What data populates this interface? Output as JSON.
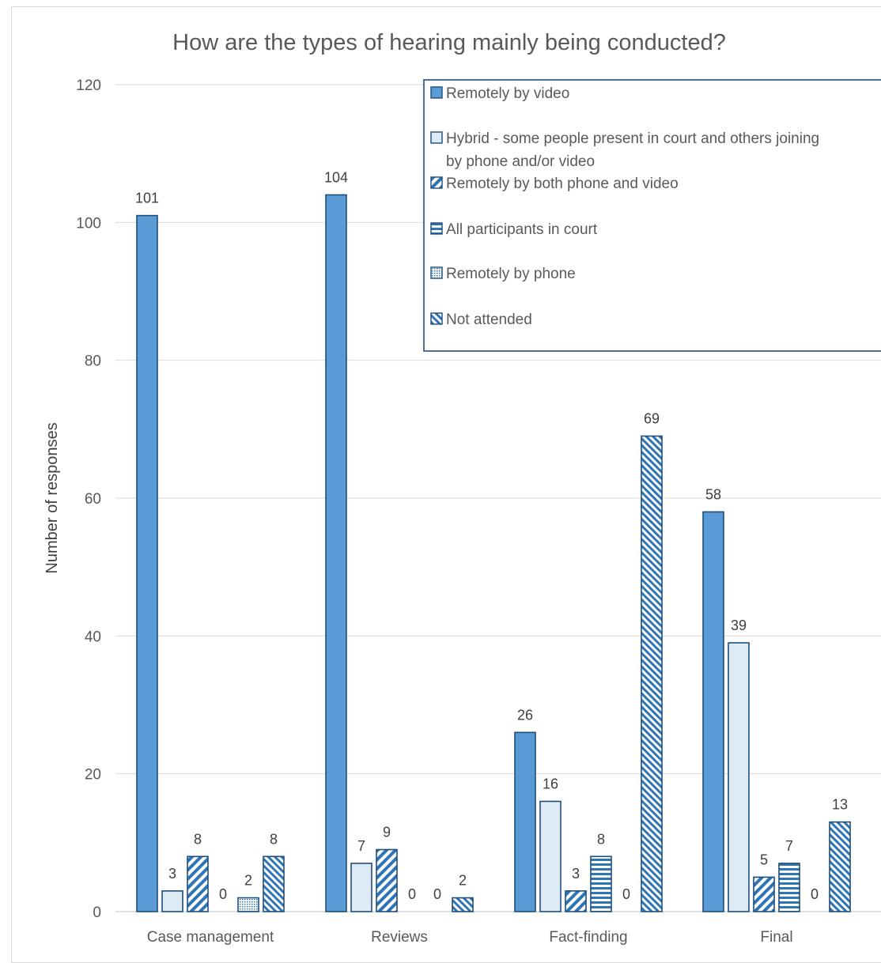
{
  "chart_data": {
    "type": "bar",
    "title": "How are the types of hearing mainly being conducted?",
    "ylabel": "Number of responses",
    "xlabel": "",
    "ylim": [
      0,
      120
    ],
    "yticks": [
      0,
      20,
      40,
      60,
      80,
      100,
      120
    ],
    "grid": true,
    "legend_position": "top-right",
    "categories": [
      "Case management",
      "Reviews",
      "Fact-finding",
      "Final"
    ],
    "series": [
      {
        "name": "Remotely by video",
        "values": [
          101,
          104,
          26,
          58
        ],
        "pattern": "solid",
        "color": "#5b9bd5"
      },
      {
        "name": "Hybrid - some people present in court and others joining by phone and/or video",
        "values": [
          3,
          7,
          16,
          39
        ],
        "pattern": "light",
        "color": "#deebf7"
      },
      {
        "name": "Remotely by both phone and video",
        "values": [
          8,
          9,
          3,
          5
        ],
        "pattern": "wide-downward-diagonal",
        "color": "#2e75b6"
      },
      {
        "name": "All participants in court",
        "values": [
          0,
          0,
          8,
          7
        ],
        "pattern": "horizontal",
        "color": "#2e75b6"
      },
      {
        "name": "Remotely by phone",
        "values": [
          2,
          0,
          0,
          0
        ],
        "pattern": "dotted",
        "color": "#2e75b6"
      },
      {
        "name": "Not attended",
        "values": [
          8,
          2,
          69,
          13
        ],
        "pattern": "upward-diagonal",
        "color": "#2e75b6"
      }
    ],
    "data_labels": [
      [
        "101",
        "3",
        "8",
        "0",
        "2",
        "8"
      ],
      [
        "104",
        "7",
        "9",
        "0",
        "0",
        "2"
      ],
      [
        "26",
        "16",
        "3",
        "8",
        "0",
        "69"
      ],
      [
        "58",
        "39",
        "5",
        "7",
        "0",
        "13"
      ]
    ],
    "legend_lines": [
      [
        "Remotely by video"
      ],
      [
        "Hybrid - some people present in court and others joining",
        "by phone and/or video"
      ],
      [
        "Remotely by both phone and video"
      ],
      [
        "All participants in court"
      ],
      [
        "Remotely by phone"
      ],
      [
        "Not attended"
      ]
    ],
    "colors": {
      "border": "#1f4e79",
      "grid": "#d9d9d9",
      "text": "#595959"
    }
  }
}
